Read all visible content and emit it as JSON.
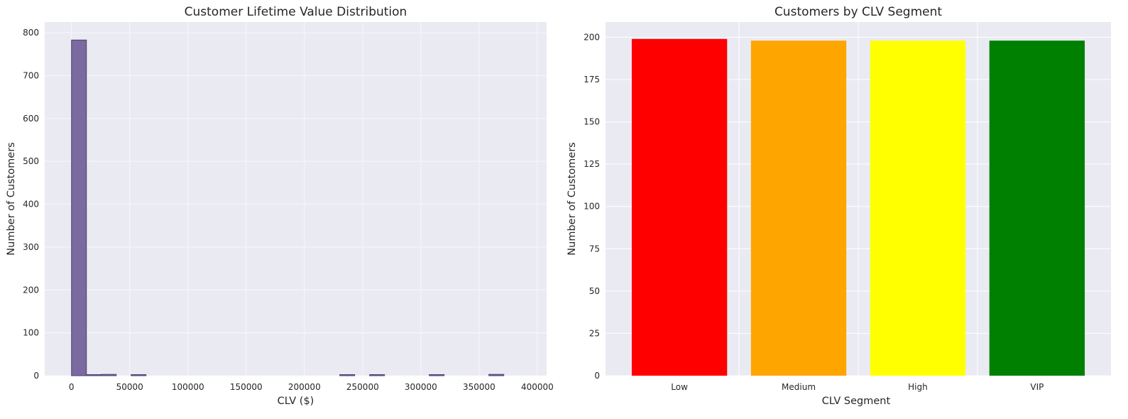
{
  "chart_data": [
    {
      "type": "bar",
      "title": "Customer Lifetime Value Distribution",
      "xlabel": "CLV ($)",
      "ylabel": "Number of Customers",
      "xlim": [
        -23000,
        408000
      ],
      "ylim": [
        0,
        825
      ],
      "xticks": [
        0,
        50000,
        100000,
        150000,
        200000,
        250000,
        300000,
        350000,
        400000
      ],
      "yticks": [
        0,
        100,
        200,
        300,
        400,
        500,
        600,
        700,
        800
      ],
      "bin_edges": [
        0,
        12800,
        25600,
        38400,
        51200,
        64000,
        76800,
        89600,
        102400,
        115200,
        128000,
        140800,
        153600,
        166400,
        179200,
        192000,
        204800,
        217600,
        230400,
        243200,
        256000,
        268800,
        281600,
        294400,
        307200,
        320000,
        332800,
        345600,
        358400,
        371200,
        384000
      ],
      "counts": [
        783,
        1,
        3,
        0,
        1,
        0,
        0,
        0,
        0,
        0,
        0,
        0,
        0,
        0,
        0,
        0,
        0,
        0,
        1,
        0,
        1,
        0,
        0,
        0,
        1,
        0,
        0,
        0,
        3,
        0
      ],
      "color": "#7a6aa0",
      "edgecolor": "#4b3f72",
      "grid": true
    },
    {
      "type": "bar",
      "title": "Customers by CLV Segment",
      "xlabel": "CLV Segment",
      "ylabel": "Number of Customers",
      "ylim": [
        0,
        209
      ],
      "yticks": [
        0,
        25,
        50,
        75,
        100,
        125,
        150,
        175,
        200
      ],
      "categories": [
        "Low",
        "Medium",
        "High",
        "VIP"
      ],
      "values": [
        199,
        198,
        198,
        198
      ],
      "colors": [
        "#ff0000",
        "#ffa500",
        "#ffff00",
        "#008000"
      ],
      "grid": true
    }
  ]
}
